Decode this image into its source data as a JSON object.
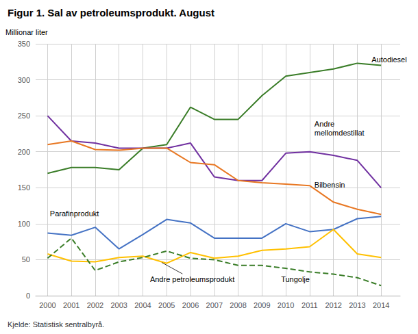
{
  "chart_data": {
    "type": "line",
    "title": "Figur 1. Sal av petroleumsprodukt. August",
    "ylabel": "Millionar liter",
    "source": "Kjelde: Statistisk sentralbyrå.",
    "x": [
      2000,
      2001,
      2002,
      2003,
      2004,
      2005,
      2006,
      2007,
      2008,
      2009,
      2010,
      2011,
      2012,
      2013,
      2014
    ],
    "series": [
      {
        "name": "Autodiesel",
        "color": "#3a7d28",
        "line_style": "solid",
        "values": [
          170,
          178,
          178,
          175,
          205,
          210,
          262,
          245,
          245,
          278,
          305,
          310,
          315,
          323,
          320
        ]
      },
      {
        "name": "Andre mellomdestillat",
        "color": "#7030a0",
        "line_style": "solid",
        "values": [
          250,
          215,
          212,
          205,
          205,
          205,
          212,
          165,
          160,
          160,
          198,
          200,
          195,
          188,
          150
        ]
      },
      {
        "name": "Bilbensin",
        "color": "#e87722",
        "line_style": "solid",
        "values": [
          210,
          215,
          203,
          202,
          205,
          205,
          185,
          182,
          160,
          157,
          155,
          153,
          130,
          120,
          113
        ]
      },
      {
        "name": "Parafinprodukt",
        "color": "#4472c4",
        "line_style": "solid",
        "values": [
          87,
          84,
          95,
          65,
          85,
          106,
          101,
          80,
          80,
          80,
          100,
          89,
          92,
          107,
          110
        ]
      },
      {
        "name": "Andre petroleumsprodukt",
        "color": "#ffc000",
        "line_style": "solid",
        "values": [
          58,
          48,
          47,
          53,
          55,
          45,
          60,
          52,
          55,
          63,
          65,
          68,
          92,
          58,
          53
        ]
      },
      {
        "name": "Tungolje",
        "color": "#3a7d28",
        "line_style": "dashed",
        "values": [
          52,
          80,
          35,
          47,
          53,
          62,
          52,
          50,
          42,
          42,
          38,
          33,
          30,
          25,
          14
        ]
      }
    ],
    "annotations": [
      {
        "text": "Autodiesel",
        "x": 2013.6,
        "y": 322
      },
      {
        "text": "Andre\nmellomdestillat",
        "x": 2011.2,
        "y": 220
      },
      {
        "text": "Bilbensin",
        "x": 2011.2,
        "y": 148
      },
      {
        "text": "Parafinprodukt",
        "x": 2000.1,
        "y": 108
      },
      {
        "text": "Andre petroleumsprodukt",
        "x": 2004.3,
        "y": 17,
        "arrow_x": 2004.8,
        "arrow_y": 46
      },
      {
        "text": "Tungolje",
        "x": 2009.8,
        "y": 17
      }
    ],
    "xlim": [
      1999.5,
      2014.8
    ],
    "xticks": [
      2000,
      2001,
      2002,
      2003,
      2004,
      2005,
      2006,
      2007,
      2008,
      2009,
      2010,
      2011,
      2012,
      2013,
      2014
    ],
    "ylim": [
      0,
      350
    ],
    "yticks": [
      0,
      50,
      100,
      150,
      200,
      250,
      300,
      350
    ],
    "grid": true
  }
}
